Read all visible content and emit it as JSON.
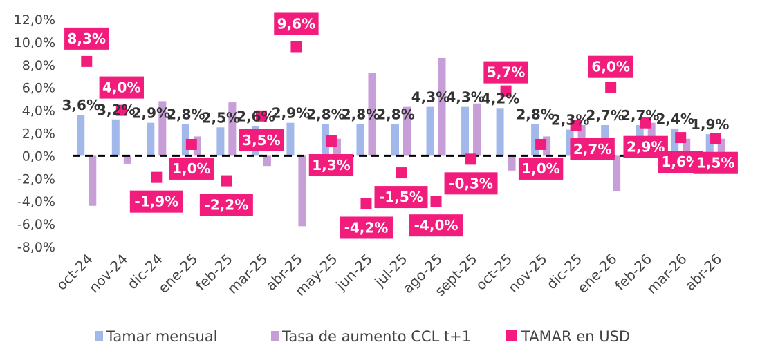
{
  "chart_data": {
    "type": "bar",
    "categories": [
      "oct-24",
      "nov-24",
      "dic-24",
      "ene-25",
      "feb-25",
      "mar-25",
      "abr-25",
      "may-25",
      "jun-25",
      "jul-25",
      "ago-25",
      "sept-25",
      "oct-25",
      "nov-25",
      "dic-25",
      "ene-26",
      "feb-26",
      "mar-26",
      "abr-26"
    ],
    "series": [
      {
        "name": "Tamar mensual",
        "kind": "bar",
        "color": "#a3b8ea",
        "values": [
          3.6,
          3.2,
          2.9,
          2.8,
          2.5,
          2.6,
          2.9,
          2.8,
          2.8,
          2.8,
          4.3,
          4.3,
          4.2,
          2.8,
          2.3,
          2.7,
          2.7,
          2.4,
          1.9
        ],
        "labels": [
          "3,6%",
          "3,2%",
          "2,9%",
          "2,8%",
          "2,5%",
          "2,6%",
          "2,9%",
          "2,8%",
          "2,8%",
          "2,8%",
          "4,3%",
          "4,3%",
          "4,2%",
          "2,8%",
          "2,3%",
          "2,7%",
          "2,7%",
          "2,4%",
          "1,9%"
        ]
      },
      {
        "name": "Tasa de aumento CCL t+1",
        "kind": "bar",
        "color": "#c89ed8",
        "values": [
          -4.4,
          -0.7,
          4.8,
          1.7,
          4.7,
          -0.9,
          -6.2,
          1.5,
          7.3,
          4.3,
          8.6,
          4.6,
          -1.3,
          1.7,
          2.7,
          -3.1,
          2.9,
          1.5,
          1.5
        ]
      },
      {
        "name": "TAMAR en USD",
        "kind": "marker",
        "color": "#f21c7d",
        "values": [
          8.3,
          4.0,
          -1.9,
          1.0,
          -2.2,
          3.5,
          9.6,
          1.3,
          -4.2,
          -1.5,
          -4.0,
          -0.3,
          5.7,
          1.0,
          2.7,
          6.0,
          2.9,
          1.6,
          1.5
        ],
        "labels": [
          "8,3%",
          "4,0%",
          "-1,9%",
          "1,0%",
          "-2,2%",
          "3,5%",
          "9,6%",
          "1,3%",
          "-4,2%",
          "-1,5%",
          "-4,0%",
          "-0,3%",
          "5,7%",
          "1,0%",
          "2,7%",
          "6,0%",
          "2,9%",
          "1,6%",
          "1,5%"
        ]
      }
    ],
    "ylim": [
      -8,
      12
    ],
    "yticks": [
      12,
      10,
      8,
      6,
      4,
      2,
      0,
      -2,
      -4,
      -6,
      -8
    ],
    "ytick_labels": [
      "12,0%",
      "10,0%",
      "8,0%",
      "6,0%",
      "4,0%",
      "2,0%",
      "0,0%",
      "-2,0%",
      "-4,0%",
      "-6,0%",
      "-8,0%"
    ],
    "zero_line": "dashed",
    "grid": false,
    "legend_position": "bottom"
  }
}
